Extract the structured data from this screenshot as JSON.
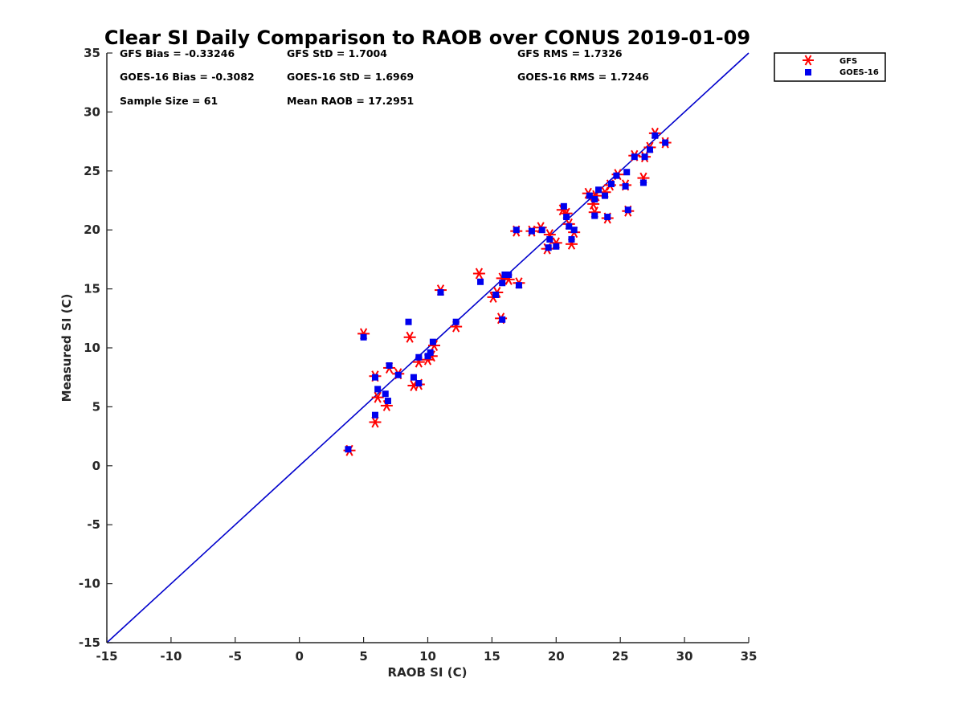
{
  "chart_data": {
    "type": "scatter",
    "title": "Clear SI Daily Comparison to RAOB over CONUS 2019-01-09",
    "xlabel": "RAOB SI (C)",
    "ylabel": "Measured SI (C)",
    "xlim": [
      -15,
      35
    ],
    "ylim": [
      -15,
      35
    ],
    "xticks": [
      "-15",
      "-10",
      "-5",
      "0",
      "5",
      "10",
      "15",
      "20",
      "25",
      "30",
      "35"
    ],
    "yticks": [
      "-15",
      "-10",
      "-5",
      "0",
      "5",
      "10",
      "15",
      "20",
      "25",
      "30",
      "35"
    ],
    "grid": false,
    "legend_position": "outside-top-right",
    "reference_line": {
      "type": "one-to-one",
      "color": "#0000cc"
    },
    "stats": {
      "gfs_bias": "GFS Bias = -0.33246",
      "gfs_std": "GFS StD = 1.7004",
      "gfs_rms": "GFS RMS = 1.7326",
      "goes_bias": "GOES-16 Bias = -0.3082",
      "goes_std": "GOES-16 StD = 1.6969",
      "goes_rms": "GOES-16 RMS = 1.7246",
      "sample_size": "Sample Size = 61",
      "mean_raob": "Mean RAOB = 17.2951"
    },
    "series": [
      {
        "name": "GFS",
        "marker": "asterisk",
        "color": "#ff0000",
        "points": [
          [
            3.9,
            1.3
          ],
          [
            5.0,
            11.2
          ],
          [
            5.9,
            7.6
          ],
          [
            5.9,
            3.7
          ],
          [
            6.1,
            5.8
          ],
          [
            6.8,
            5.1
          ],
          [
            7.0,
            8.3
          ],
          [
            7.7,
            7.8
          ],
          [
            8.6,
            10.9
          ],
          [
            8.9,
            6.8
          ],
          [
            9.3,
            6.9
          ],
          [
            9.3,
            8.8
          ],
          [
            10.0,
            9.0
          ],
          [
            10.3,
            9.3
          ],
          [
            10.5,
            10.2
          ],
          [
            11.0,
            14.9
          ],
          [
            12.2,
            11.8
          ],
          [
            14.0,
            16.3
          ],
          [
            15.1,
            14.3
          ],
          [
            15.4,
            14.7
          ],
          [
            15.7,
            12.5
          ],
          [
            15.8,
            15.9
          ],
          [
            16.3,
            15.8
          ],
          [
            17.1,
            15.5
          ],
          [
            16.9,
            19.9
          ],
          [
            18.1,
            19.9
          ],
          [
            18.8,
            20.2
          ],
          [
            19.3,
            18.4
          ],
          [
            19.5,
            19.6
          ],
          [
            20.0,
            18.9
          ],
          [
            20.5,
            21.7
          ],
          [
            20.8,
            21.4
          ],
          [
            21.0,
            20.5
          ],
          [
            21.2,
            18.8
          ],
          [
            21.4,
            19.8
          ],
          [
            22.5,
            23.1
          ],
          [
            22.9,
            22.2
          ],
          [
            23.0,
            21.5
          ],
          [
            23.1,
            22.9
          ],
          [
            23.8,
            23.2
          ],
          [
            24.0,
            21.0
          ],
          [
            24.2,
            23.8
          ],
          [
            24.8,
            24.7
          ],
          [
            25.4,
            23.8
          ],
          [
            25.6,
            21.6
          ],
          [
            26.1,
            26.3
          ],
          [
            26.8,
            24.4
          ],
          [
            26.9,
            26.2
          ],
          [
            27.3,
            27.0
          ],
          [
            27.7,
            28.2
          ],
          [
            28.5,
            27.4
          ]
        ]
      },
      {
        "name": "GOES-16",
        "marker": "square",
        "color": "#0000ee",
        "points": [
          [
            3.8,
            1.4
          ],
          [
            5.0,
            10.9
          ],
          [
            5.9,
            7.5
          ],
          [
            5.9,
            4.3
          ],
          [
            6.1,
            6.5
          ],
          [
            6.7,
            6.1
          ],
          [
            6.9,
            5.5
          ],
          [
            7.0,
            8.5
          ],
          [
            7.7,
            7.7
          ],
          [
            8.5,
            12.2
          ],
          [
            8.9,
            7.5
          ],
          [
            9.3,
            7.0
          ],
          [
            9.3,
            9.2
          ],
          [
            10.0,
            9.3
          ],
          [
            10.2,
            9.6
          ],
          [
            10.4,
            10.5
          ],
          [
            11.0,
            14.7
          ],
          [
            12.2,
            12.2
          ],
          [
            14.1,
            15.6
          ],
          [
            15.3,
            14.5
          ],
          [
            15.8,
            15.5
          ],
          [
            15.8,
            12.4
          ],
          [
            16.0,
            16.2
          ],
          [
            16.3,
            16.2
          ],
          [
            17.1,
            15.3
          ],
          [
            16.9,
            20.0
          ],
          [
            18.1,
            19.9
          ],
          [
            18.9,
            20.0
          ],
          [
            19.4,
            18.5
          ],
          [
            19.5,
            19.2
          ],
          [
            20.0,
            18.6
          ],
          [
            20.6,
            22.0
          ],
          [
            20.8,
            21.1
          ],
          [
            21.0,
            20.3
          ],
          [
            21.2,
            19.2
          ],
          [
            21.4,
            20.0
          ],
          [
            22.6,
            22.9
          ],
          [
            23.0,
            21.2
          ],
          [
            23.0,
            22.6
          ],
          [
            23.3,
            23.4
          ],
          [
            23.8,
            22.9
          ],
          [
            24.0,
            21.1
          ],
          [
            24.3,
            23.9
          ],
          [
            24.7,
            24.6
          ],
          [
            25.4,
            23.7
          ],
          [
            25.5,
            24.9
          ],
          [
            25.6,
            21.7
          ],
          [
            26.1,
            26.2
          ],
          [
            26.8,
            24.0
          ],
          [
            26.9,
            26.2
          ],
          [
            27.3,
            26.8
          ],
          [
            27.7,
            28.0
          ],
          [
            28.5,
            27.4
          ]
        ]
      }
    ]
  }
}
